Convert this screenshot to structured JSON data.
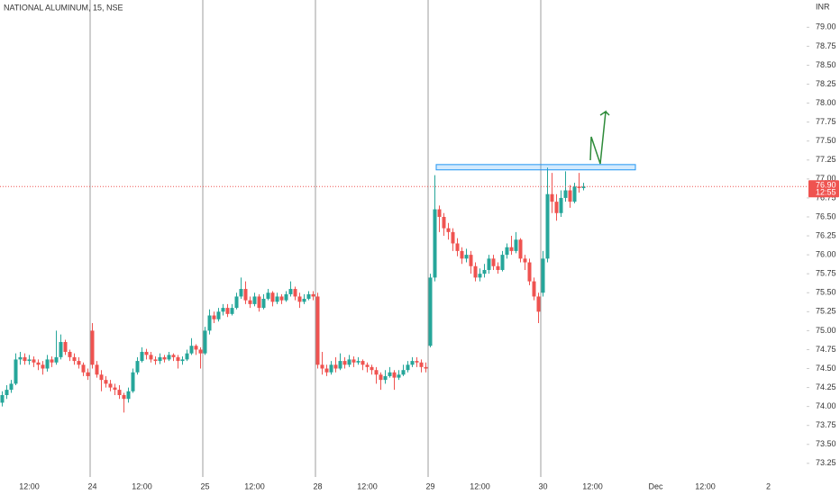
{
  "chart_data": {
    "type": "candlestick",
    "title": "NATIONAL ALUMINUM, 15, NSE",
    "currency": "INR",
    "up_color": "#26a69a",
    "down_color": "#ef5350",
    "ylim": [
      73.07,
      79.36
    ],
    "xlim": [
      -0.5,
      178.5
    ],
    "yticks": [
      {
        "value": 73.25,
        "label": "73.25"
      },
      {
        "value": 73.5,
        "label": "73.50"
      },
      {
        "value": 73.75,
        "label": "73.75"
      },
      {
        "value": 74,
        "label": "74.00"
      },
      {
        "value": 74.25,
        "label": "74.25"
      },
      {
        "value": 74.5,
        "label": "74.50"
      },
      {
        "value": 74.75,
        "label": "74.75"
      },
      {
        "value": 75,
        "label": "75.00"
      },
      {
        "value": 75.25,
        "label": "75.25"
      },
      {
        "value": 75.5,
        "label": "75.50"
      },
      {
        "value": 75.75,
        "label": "75.75"
      },
      {
        "value": 76,
        "label": "76.00"
      },
      {
        "value": 76.25,
        "label": "76.25"
      },
      {
        "value": 76.5,
        "label": "76.50"
      },
      {
        "value": 76.75,
        "label": "76.75"
      },
      {
        "value": 77,
        "label": "77.00"
      },
      {
        "value": 77.25,
        "label": "77.25"
      },
      {
        "value": 77.5,
        "label": "77.50"
      },
      {
        "value": 77.75,
        "label": "77.75"
      },
      {
        "value": 78,
        "label": "78.00"
      },
      {
        "value": 78.25,
        "label": "78.25"
      },
      {
        "value": 78.5,
        "label": "78.50"
      },
      {
        "value": 78.75,
        "label": "78.75"
      },
      {
        "value": 79,
        "label": "79.00"
      }
    ],
    "xticks": [
      {
        "value": 6,
        "label": "12:00"
      },
      {
        "value": 20,
        "label": "24"
      },
      {
        "value": 31,
        "label": "12:00"
      },
      {
        "value": 45,
        "label": "25"
      },
      {
        "value": 56,
        "label": "12:00"
      },
      {
        "value": 70,
        "label": "28"
      },
      {
        "value": 81,
        "label": "12:00"
      },
      {
        "value": 95,
        "label": "29"
      },
      {
        "value": 106,
        "label": "12:00"
      },
      {
        "value": 120,
        "label": "30"
      },
      {
        "value": 131,
        "label": "12:00"
      },
      {
        "value": 145,
        "label": "Dec"
      },
      {
        "value": 156,
        "label": "12:00"
      },
      {
        "value": 170,
        "label": "2"
      }
    ],
    "last_price": {
      "value": 76.9,
      "label": "76.90"
    },
    "last_time": "12:55",
    "zone": [
      77.12,
      77.19
    ],
    "ohlc": [
      [
        74.05,
        74.2,
        74.0,
        74.15
      ],
      [
        74.15,
        74.28,
        74.1,
        74.22
      ],
      [
        74.22,
        74.35,
        74.18,
        74.3
      ],
      [
        74.3,
        74.7,
        74.28,
        74.62
      ],
      [
        74.62,
        74.72,
        74.55,
        74.65
      ],
      [
        74.65,
        74.7,
        74.55,
        74.6
      ],
      [
        74.6,
        74.68,
        74.55,
        74.62
      ],
      [
        74.62,
        74.66,
        74.52,
        74.58
      ],
      [
        74.58,
        74.62,
        74.48,
        74.55
      ],
      [
        74.55,
        74.6,
        74.42,
        74.5
      ],
      [
        74.5,
        74.68,
        74.46,
        74.62
      ],
      [
        74.62,
        74.66,
        74.52,
        74.58
      ],
      [
        74.58,
        75.0,
        74.55,
        74.65
      ],
      [
        74.65,
        74.95,
        74.62,
        74.85
      ],
      [
        74.85,
        74.88,
        74.68,
        74.72
      ],
      [
        74.72,
        74.75,
        74.6,
        74.65
      ],
      [
        74.65,
        74.7,
        74.55,
        74.6
      ],
      [
        74.6,
        74.65,
        74.5,
        74.55
      ],
      [
        74.55,
        74.58,
        74.4,
        74.45
      ],
      [
        74.45,
        74.5,
        74.35,
        74.4
      ],
      [
        75.0,
        75.1,
        74.5,
        74.55
      ],
      [
        74.55,
        74.6,
        74.38,
        74.42
      ],
      [
        74.42,
        74.48,
        74.2,
        74.35
      ],
      [
        74.35,
        74.4,
        74.25,
        74.3
      ],
      [
        74.3,
        74.35,
        74.2,
        74.25
      ],
      [
        74.25,
        74.3,
        74.15,
        74.22
      ],
      [
        74.22,
        74.28,
        74.1,
        74.15
      ],
      [
        74.15,
        74.18,
        73.92,
        74.1
      ],
      [
        74.1,
        74.25,
        74.05,
        74.2
      ],
      [
        74.2,
        74.5,
        74.18,
        74.45
      ],
      [
        74.45,
        74.65,
        74.42,
        74.6
      ],
      [
        74.6,
        74.78,
        74.58,
        74.72
      ],
      [
        74.72,
        74.76,
        74.62,
        74.68
      ],
      [
        74.68,
        74.72,
        74.58,
        74.62
      ],
      [
        74.62,
        74.66,
        74.55,
        74.6
      ],
      [
        74.6,
        74.7,
        74.56,
        74.65
      ],
      [
        74.65,
        74.68,
        74.58,
        74.62
      ],
      [
        74.62,
        74.72,
        74.6,
        74.68
      ],
      [
        74.68,
        74.7,
        74.6,
        74.65
      ],
      [
        74.65,
        74.68,
        74.5,
        74.6
      ],
      [
        74.6,
        74.66,
        74.55,
        74.62
      ],
      [
        74.62,
        74.75,
        74.6,
        74.7
      ],
      [
        74.7,
        74.9,
        74.68,
        74.8
      ],
      [
        74.8,
        74.82,
        74.68,
        74.75
      ],
      [
        74.75,
        74.78,
        74.5,
        74.7
      ],
      [
        74.7,
        75.05,
        74.68,
        75.0
      ],
      [
        75.0,
        75.28,
        74.95,
        75.2
      ],
      [
        75.2,
        75.25,
        75.1,
        75.15
      ],
      [
        75.15,
        75.3,
        75.12,
        75.25
      ],
      [
        75.25,
        75.35,
        75.2,
        75.3
      ],
      [
        75.3,
        75.35,
        75.18,
        75.22
      ],
      [
        75.22,
        75.35,
        75.2,
        75.3
      ],
      [
        75.3,
        75.5,
        75.28,
        75.45
      ],
      [
        75.45,
        75.7,
        75.42,
        75.55
      ],
      [
        75.55,
        75.65,
        75.35,
        75.4
      ],
      [
        75.4,
        75.45,
        75.3,
        75.35
      ],
      [
        75.35,
        75.5,
        75.32,
        75.45
      ],
      [
        75.45,
        75.48,
        75.25,
        75.3
      ],
      [
        75.3,
        75.48,
        75.28,
        75.42
      ],
      [
        75.42,
        75.55,
        75.4,
        75.5
      ],
      [
        75.5,
        75.52,
        75.32,
        75.38
      ],
      [
        75.38,
        75.5,
        75.35,
        75.45
      ],
      [
        75.45,
        75.48,
        75.35,
        75.4
      ],
      [
        75.4,
        75.52,
        75.38,
        75.48
      ],
      [
        75.48,
        75.65,
        75.45,
        75.55
      ],
      [
        75.55,
        75.58,
        75.4,
        75.45
      ],
      [
        75.45,
        75.5,
        75.3,
        75.38
      ],
      [
        75.38,
        75.48,
        75.35,
        75.42
      ],
      [
        75.42,
        75.52,
        75.4,
        75.48
      ],
      [
        75.48,
        75.52,
        75.4,
        75.45
      ],
      [
        75.45,
        75.5,
        74.5,
        74.55
      ],
      [
        74.55,
        74.72,
        74.42,
        74.5
      ],
      [
        74.5,
        74.55,
        74.4,
        74.45
      ],
      [
        74.45,
        74.6,
        74.42,
        74.55
      ],
      [
        74.55,
        74.65,
        74.45,
        74.5
      ],
      [
        74.5,
        74.7,
        74.48,
        74.6
      ],
      [
        74.6,
        74.65,
        74.5,
        74.55
      ],
      [
        74.55,
        74.68,
        74.52,
        74.62
      ],
      [
        74.62,
        74.66,
        74.52,
        74.58
      ],
      [
        74.58,
        74.65,
        74.55,
        74.6
      ],
      [
        74.6,
        74.62,
        74.48,
        74.55
      ],
      [
        74.55,
        74.58,
        74.45,
        74.52
      ],
      [
        74.52,
        74.55,
        74.42,
        74.48
      ],
      [
        74.48,
        74.52,
        74.3,
        74.42
      ],
      [
        74.42,
        74.45,
        74.22,
        74.35
      ],
      [
        74.35,
        74.48,
        74.3,
        74.4
      ],
      [
        74.4,
        74.52,
        74.38,
        74.45
      ],
      [
        74.45,
        74.48,
        74.22,
        74.38
      ],
      [
        74.38,
        74.48,
        74.35,
        74.42
      ],
      [
        74.42,
        74.55,
        74.4,
        74.48
      ],
      [
        74.48,
        74.6,
        74.45,
        74.55
      ],
      [
        74.55,
        74.65,
        74.52,
        74.6
      ],
      [
        74.6,
        74.65,
        74.52,
        74.58
      ],
      [
        74.58,
        74.62,
        74.45,
        74.52
      ],
      [
        74.52,
        74.58,
        74.45,
        74.5
      ],
      [
        74.8,
        75.75,
        74.78,
        75.7
      ],
      [
        75.7,
        77.05,
        75.65,
        76.6
      ],
      [
        76.6,
        76.65,
        76.3,
        76.5
      ],
      [
        76.5,
        76.55,
        76.25,
        76.35
      ],
      [
        76.35,
        76.42,
        76.2,
        76.3
      ],
      [
        76.3,
        76.35,
        76.05,
        76.15
      ],
      [
        76.15,
        76.22,
        75.98,
        76.05
      ],
      [
        76.05,
        76.1,
        75.88,
        75.95
      ],
      [
        75.95,
        76.08,
        75.9,
        76.0
      ],
      [
        76.0,
        76.05,
        75.75,
        75.85
      ],
      [
        75.85,
        75.9,
        75.65,
        75.7
      ],
      [
        75.7,
        75.82,
        75.65,
        75.75
      ],
      [
        75.75,
        75.88,
        75.7,
        75.8
      ],
      [
        75.8,
        76.0,
        75.75,
        75.95
      ],
      [
        75.95,
        76.0,
        75.8,
        75.85
      ],
      [
        75.85,
        75.9,
        75.75,
        75.8
      ],
      [
        75.8,
        76.05,
        75.78,
        76.0
      ],
      [
        76.0,
        76.15,
        75.95,
        76.1
      ],
      [
        76.1,
        76.25,
        76.0,
        76.05
      ],
      [
        76.05,
        76.3,
        76.02,
        76.2
      ],
      [
        76.2,
        76.22,
        75.9,
        75.95
      ],
      [
        75.95,
        76.0,
        75.8,
        75.9
      ],
      [
        75.9,
        75.95,
        75.6,
        75.65
      ],
      [
        75.65,
        75.7,
        75.4,
        75.45
      ],
      [
        75.45,
        75.5,
        75.1,
        75.25
      ],
      [
        75.5,
        76.05,
        75.45,
        75.95
      ],
      [
        75.95,
        77.15,
        75.9,
        76.8
      ],
      [
        76.8,
        77.08,
        76.55,
        76.7
      ],
      [
        76.7,
        76.8,
        76.45,
        76.55
      ],
      [
        76.55,
        76.85,
        76.5,
        76.75
      ],
      [
        76.75,
        77.1,
        76.7,
        76.85
      ],
      [
        76.85,
        76.92,
        76.62,
        76.7
      ],
      [
        76.7,
        76.95,
        76.68,
        76.9
      ],
      [
        76.9,
        77.08,
        76.82,
        76.88
      ],
      [
        76.88,
        76.95,
        76.85,
        76.9
      ]
    ]
  }
}
